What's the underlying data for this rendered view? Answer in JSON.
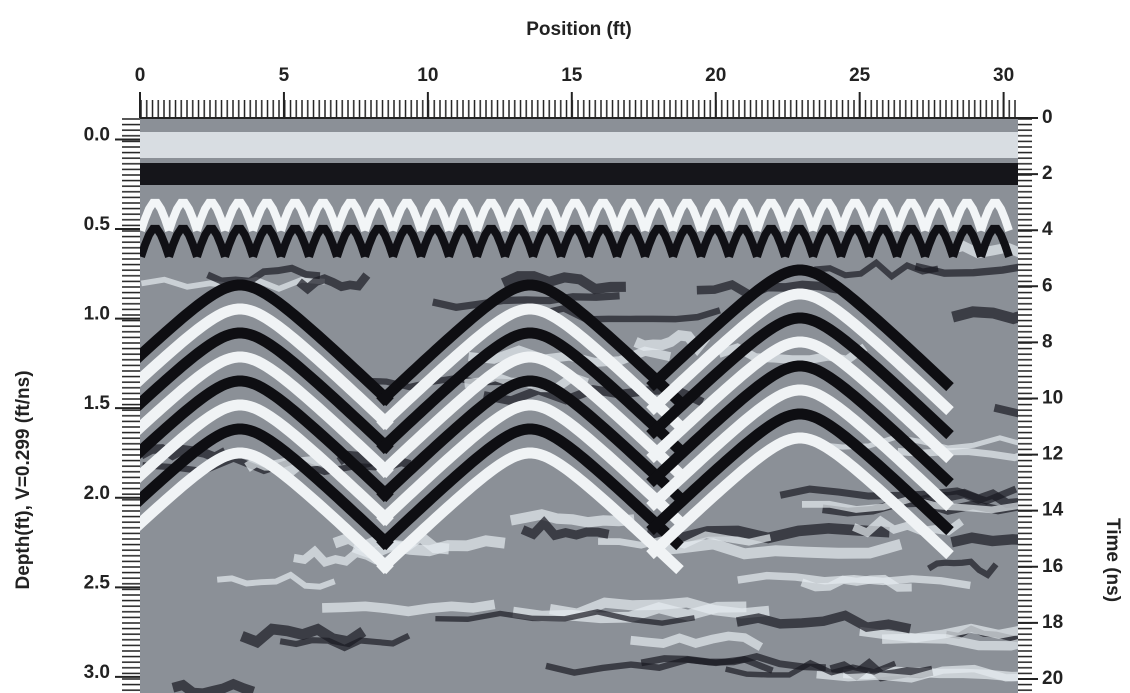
{
  "chart_data": {
    "type": "radargram",
    "xlabel": "Position (ft)",
    "ylabel": "Depth(ft), V=0.299 (ft/ns)",
    "y2label": "Time (ns)",
    "xlim": [
      0,
      30.5
    ],
    "xticks": [
      0,
      5,
      10,
      15,
      20,
      25,
      30
    ],
    "ylim": [
      -0.12,
      3.09
    ],
    "y_inverted": true,
    "yticks": [
      {
        "value": 0,
        "label": "0.0"
      },
      0.5,
      {
        "value": 1,
        "label": "1.0"
      },
      1.5,
      {
        "value": 2,
        "label": "2.0"
      },
      2.5,
      {
        "value": 3,
        "label": "3.0"
      }
    ],
    "y2lim": [
      0,
      20.5
    ],
    "y2ticks": [
      0,
      2,
      4,
      6,
      8,
      10,
      12,
      14,
      16,
      18,
      20
    ]
  }
}
